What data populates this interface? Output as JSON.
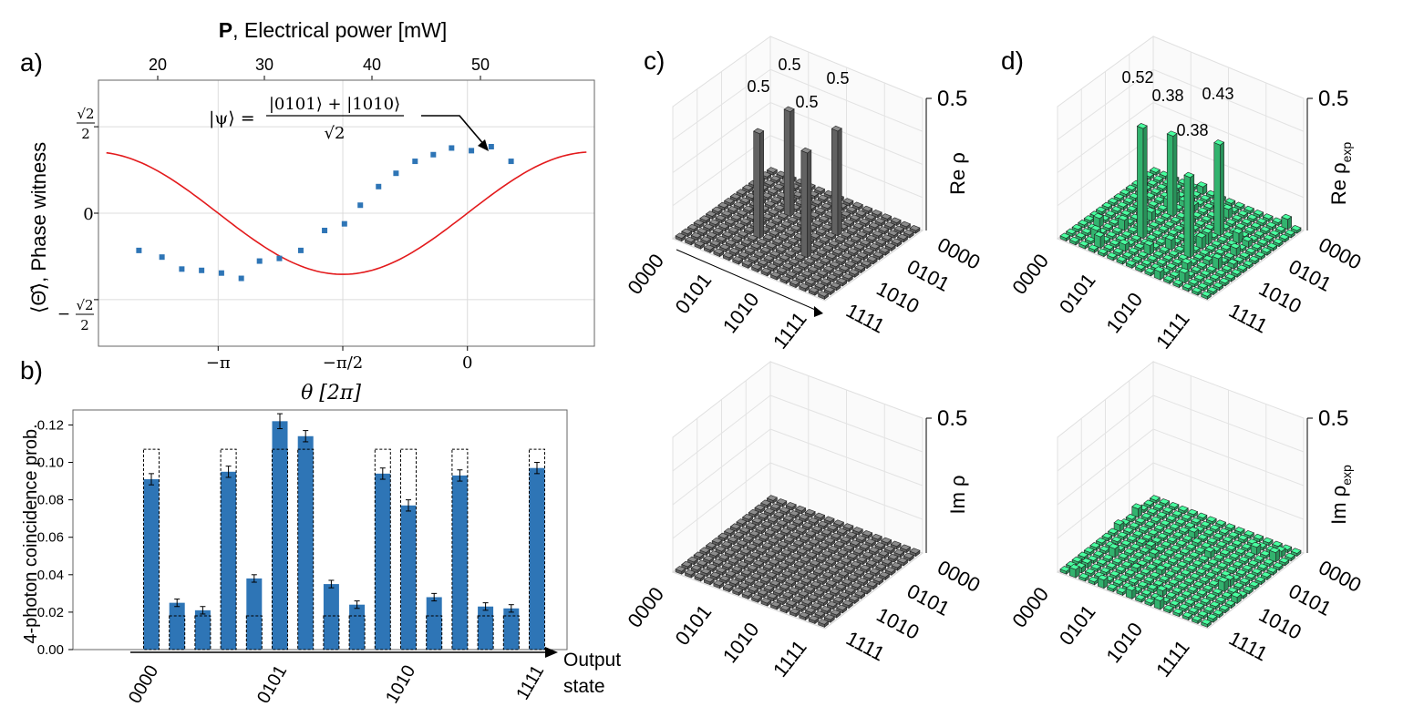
{
  "chart_data": [
    {
      "panel_label": "a)",
      "type": "scatter",
      "top_axis_label_bold": "P",
      "top_axis_label_rest": ", Electrical power [mW]",
      "top_ticks": [
        "20",
        "30",
        "40",
        "50"
      ],
      "xlabel": "θ [2π]",
      "x_ticks": [
        "−π",
        "−π/2",
        "0"
      ],
      "ylabel": "⟨Θ̂⟩, Phase witness",
      "y_ticks": {
        "top_num": "√2",
        "top_den": "2",
        "zero": "0",
        "bottom_sign": "−",
        "bottom_num": "√2",
        "bottom_den": "2"
      },
      "annotation": {
        "lhs": "|ψ⟩ =",
        "numerator": "|0101⟩ + |1010⟩",
        "denominator": "√2"
      },
      "xlim": [
        -4.65,
        1.6
      ],
      "ylim": [
        -1.0,
        1.0
      ],
      "fit_color": "#e31a1c",
      "point_color": "#2e75b6",
      "grid": true,
      "points": {
        "x": [
          -4.14,
          -3.85,
          -3.6,
          -3.35,
          -3.1,
          -2.85,
          -2.62,
          -2.37,
          -2.1,
          -1.8,
          -1.55,
          -1.35,
          -1.12,
          -0.9,
          -0.66,
          -0.43,
          -0.2,
          0.05,
          0.3,
          0.55
        ],
        "y": [
          -0.28,
          -0.33,
          -0.42,
          -0.43,
          -0.45,
          -0.49,
          -0.36,
          -0.34,
          -0.28,
          -0.13,
          -0.08,
          0.06,
          0.2,
          0.3,
          0.39,
          0.44,
          0.49,
          0.47,
          0.5,
          0.39
        ]
      },
      "fit": {
        "model": "A*sin(x)",
        "A": 0.46
      }
    },
    {
      "panel_label": "b)",
      "type": "bar",
      "ylabel": "4-photon coincidence prob.",
      "xlabel_lines": [
        "Output",
        "state"
      ],
      "x_tick_labels": [
        "0000",
        "0101",
        "1010",
        "1111"
      ],
      "x_tick_indices": [
        0,
        5,
        10,
        15
      ],
      "y_ticks": [
        "0.00",
        "0.02",
        "0.04",
        "0.06",
        "0.08",
        "0.10",
        "0.12"
      ],
      "ylim": [
        0,
        0.128
      ],
      "bar_color": "#2e75b6",
      "values": [
        0.091,
        0.025,
        0.021,
        0.095,
        0.038,
        0.122,
        0.114,
        0.035,
        0.024,
        0.094,
        0.077,
        0.028,
        0.093,
        0.023,
        0.022,
        0.097
      ],
      "errors": [
        0.003,
        0.002,
        0.002,
        0.003,
        0.002,
        0.004,
        0.003,
        0.002,
        0.002,
        0.003,
        0.003,
        0.002,
        0.003,
        0.002,
        0.002,
        0.003
      ],
      "theory": [
        0.107,
        0.018,
        0.018,
        0.107,
        0.018,
        0.107,
        0.107,
        0.018,
        0.018,
        0.107,
        0.107,
        0.018,
        0.107,
        0.018,
        0.018,
        0.107
      ]
    },
    {
      "panel_label": "c)",
      "type": "bar3d",
      "bar_color": "#7a7a7a",
      "zlabel_re": "Re ρ",
      "zlabel_im": "Im ρ",
      "z_tick": "0.5",
      "axis_ticks": [
        "0000",
        "0101",
        "1010",
        "1111"
      ],
      "peak_labels": [
        "0.5",
        "0.5",
        "0.5",
        "0.5"
      ]
    },
    {
      "panel_label": "d)",
      "type": "bar3d",
      "bar_color": "#3fe08a",
      "zlabel_re_main": "Re ρ",
      "zlabel_im_main": "Im ρ",
      "zlabel_sub": "exp",
      "z_tick": "0.5",
      "axis_ticks": [
        "0000",
        "0101",
        "1010",
        "1111"
      ],
      "peak_labels": [
        "0.52",
        "0.38",
        "0.38",
        "0.43"
      ]
    }
  ]
}
